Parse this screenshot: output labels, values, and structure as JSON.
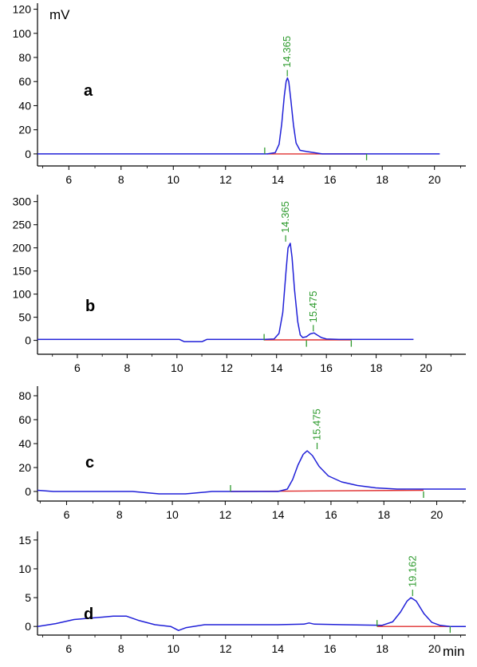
{
  "chart_data": [
    {
      "type": "line",
      "panel_label": "a",
      "ylabel": "mV",
      "xlabel": "",
      "xlim": [
        4.8,
        21.2
      ],
      "ylim": [
        -10,
        125
      ],
      "x_ticks": [
        6,
        8,
        10,
        12,
        14,
        16,
        18,
        20
      ],
      "y_ticks": [
        0,
        20,
        40,
        60,
        80,
        100,
        120
      ],
      "signal": [
        [
          4.8,
          0
        ],
        [
          13.6,
          0
        ],
        [
          13.9,
          1
        ],
        [
          14.05,
          8
        ],
        [
          14.15,
          25
        ],
        [
          14.25,
          48
        ],
        [
          14.32,
          60
        ],
        [
          14.37,
          63
        ],
        [
          14.42,
          60
        ],
        [
          14.5,
          45
        ],
        [
          14.6,
          24
        ],
        [
          14.7,
          9
        ],
        [
          14.85,
          3
        ],
        [
          15.1,
          2
        ],
        [
          15.4,
          1
        ],
        [
          15.7,
          0
        ],
        [
          20.2,
          0
        ]
      ],
      "baseline": [
        [
          13.6,
          0
        ],
        [
          17.4,
          0
        ]
      ],
      "integration_marks": [
        [
          13.5,
          "up"
        ],
        [
          17.4,
          "down"
        ]
      ],
      "peaks": [
        {
          "x": 14.365,
          "y": 63,
          "label": "14.365"
        }
      ]
    },
    {
      "type": "line",
      "panel_label": "b",
      "ylabel": "",
      "xlabel": "",
      "xlim": [
        4.4,
        21.6
      ],
      "ylim": [
        -30,
        315
      ],
      "x_ticks": [
        6,
        8,
        10,
        12,
        14,
        16,
        18,
        20
      ],
      "x_tick_labels_extra": [
        {
          "x": 22,
          "label": "2"
        }
      ],
      "y_ticks": [
        0,
        50,
        100,
        150,
        200,
        250,
        300
      ],
      "signal": [
        [
          4.4,
          2
        ],
        [
          10.1,
          2
        ],
        [
          10.3,
          -3
        ],
        [
          11.0,
          -3
        ],
        [
          11.2,
          2
        ],
        [
          13.5,
          2
        ],
        [
          13.9,
          3
        ],
        [
          14.1,
          15
        ],
        [
          14.25,
          60
        ],
        [
          14.38,
          150
        ],
        [
          14.46,
          200
        ],
        [
          14.55,
          210
        ],
        [
          14.62,
          180
        ],
        [
          14.72,
          110
        ],
        [
          14.85,
          40
        ],
        [
          14.95,
          12
        ],
        [
          15.05,
          6
        ],
        [
          15.2,
          8
        ],
        [
          15.35,
          14
        ],
        [
          15.5,
          16
        ],
        [
          15.65,
          11
        ],
        [
          15.8,
          6
        ],
        [
          16.0,
          3
        ],
        [
          16.5,
          2
        ],
        [
          19.5,
          2
        ]
      ],
      "baseline": [
        [
          13.5,
          1
        ],
        [
          17.0,
          1
        ]
      ],
      "integration_marks": [
        [
          13.5,
          "up"
        ],
        [
          15.2,
          "down"
        ],
        [
          17.0,
          "down"
        ]
      ],
      "peaks": [
        {
          "x": 14.365,
          "y": 210,
          "label": "14.365"
        },
        {
          "x": 15.475,
          "y": 16,
          "label": "15.475"
        }
      ]
    },
    {
      "type": "line",
      "panel_label": "c",
      "ylabel": "",
      "xlabel": "",
      "xlim": [
        4.9,
        21.1
      ],
      "ylim": [
        -8,
        88
      ],
      "x_ticks": [
        6,
        8,
        10,
        12,
        14,
        16,
        18,
        20
      ],
      "y_ticks": [
        0,
        20,
        40,
        60,
        80
      ],
      "signal": [
        [
          4.9,
          1
        ],
        [
          5.5,
          0
        ],
        [
          8.5,
          0
        ],
        [
          9.5,
          -2
        ],
        [
          10.5,
          -2
        ],
        [
          11.5,
          0
        ],
        [
          14.0,
          0
        ],
        [
          14.35,
          2
        ],
        [
          14.55,
          10
        ],
        [
          14.75,
          22
        ],
        [
          14.95,
          31
        ],
        [
          15.1,
          34
        ],
        [
          15.3,
          30
        ],
        [
          15.55,
          21
        ],
        [
          15.9,
          13
        ],
        [
          16.4,
          8
        ],
        [
          17.0,
          5
        ],
        [
          17.7,
          3
        ],
        [
          18.5,
          2
        ],
        [
          21.1,
          2
        ]
      ],
      "baseline": [
        [
          12.2,
          0
        ],
        [
          19.5,
          1
        ]
      ],
      "integration_marks": [
        [
          12.2,
          "up"
        ],
        [
          19.5,
          "down"
        ]
      ],
      "peaks": [
        {
          "x": 15.475,
          "y": 34,
          "label": "15.475"
        }
      ]
    },
    {
      "type": "line",
      "panel_label": "d",
      "ylabel": "",
      "xlabel": "min",
      "xlim": [
        4.8,
        21.2
      ],
      "ylim": [
        -1.5,
        16.5
      ],
      "x_ticks": [
        6,
        8,
        10,
        12,
        14,
        16,
        18,
        20
      ],
      "y_ticks": [
        0,
        5,
        10,
        15
      ],
      "signal": [
        [
          4.8,
          0
        ],
        [
          5.5,
          0.5
        ],
        [
          6.2,
          1.2
        ],
        [
          7.0,
          1.5
        ],
        [
          7.7,
          1.8
        ],
        [
          8.2,
          1.8
        ],
        [
          8.7,
          1.0
        ],
        [
          9.3,
          0.3
        ],
        [
          9.9,
          0
        ],
        [
          10.2,
          -0.7
        ],
        [
          10.5,
          -0.2
        ],
        [
          11.2,
          0.3
        ],
        [
          12.0,
          0.3
        ],
        [
          13.0,
          0.3
        ],
        [
          14.0,
          0.3
        ],
        [
          15.0,
          0.4
        ],
        [
          15.2,
          0.6
        ],
        [
          15.4,
          0.4
        ],
        [
          16.5,
          0.3
        ],
        [
          18.0,
          0.2
        ],
        [
          18.4,
          0.8
        ],
        [
          18.7,
          2.5
        ],
        [
          18.95,
          4.4
        ],
        [
          19.1,
          5.0
        ],
        [
          19.3,
          4.4
        ],
        [
          19.6,
          2.2
        ],
        [
          19.9,
          0.7
        ],
        [
          20.2,
          0.2
        ],
        [
          20.6,
          0
        ],
        [
          21.2,
          0
        ]
      ],
      "baseline": [
        [
          17.8,
          0
        ],
        [
          20.6,
          0
        ]
      ],
      "integration_marks": [
        [
          17.8,
          "up"
        ],
        [
          20.6,
          "down"
        ]
      ],
      "peaks": [
        {
          "x": 19.162,
          "y": 5.0,
          "label": "19.162"
        }
      ]
    }
  ],
  "colors": {
    "signal": "#2020d8",
    "baseline": "#e03030",
    "peak_label": "#2e9b2e",
    "axis": "#000000"
  }
}
